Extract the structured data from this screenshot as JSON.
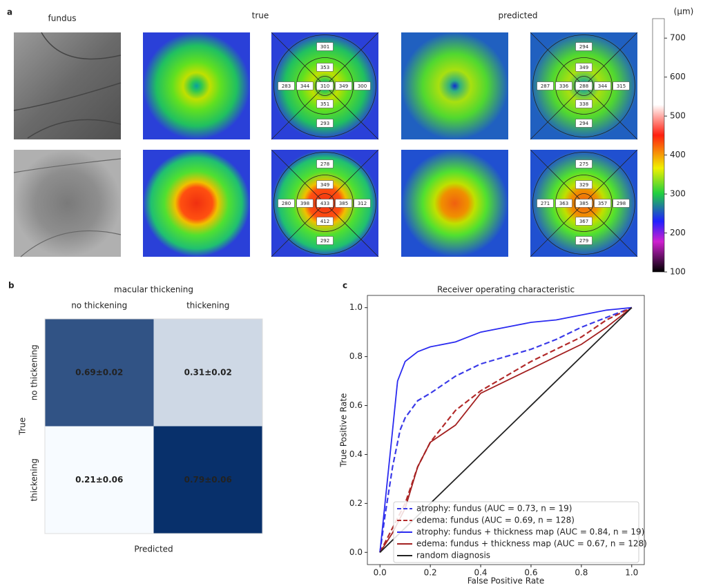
{
  "panel_a": {
    "label": "a",
    "column_titles": [
      "fundus",
      "true",
      "predicted"
    ],
    "grids": [
      {
        "values": [
          301,
          353,
          283,
          344,
          310,
          349,
          300,
          351,
          293
        ]
      },
      {
        "values": [
          294,
          349,
          287,
          336,
          288,
          344,
          315,
          338,
          294
        ]
      },
      {
        "values": [
          278,
          349,
          280,
          398,
          433,
          385,
          312,
          412,
          292
        ]
      },
      {
        "values": [
          275,
          329,
          271,
          363,
          385,
          357,
          298,
          367,
          279
        ]
      }
    ],
    "colorbar": {
      "unit": "(μm)",
      "lim": [
        100,
        750
      ],
      "ticks": [
        100,
        200,
        300,
        400,
        500,
        600,
        700
      ]
    }
  },
  "chart_data": [
    {
      "type": "heatmap",
      "panel_label": "b",
      "title": "macular thickening",
      "categories": [
        "no thickening",
        "thickening"
      ],
      "row_categories": [
        "no thickening",
        "thickening"
      ],
      "xlabel": "Predicted",
      "ylabel": "True",
      "values": [
        [
          0.69,
          0.31
        ],
        [
          0.21,
          0.79
        ]
      ],
      "value_labels": [
        [
          "0.69±0.02",
          "0.31±0.02"
        ],
        [
          "0.21±0.06",
          "0.79±0.06"
        ]
      ],
      "colormap": [
        "#f7fbff",
        "#08306b"
      ]
    },
    {
      "type": "line",
      "panel_label": "c",
      "title": "Receiver operating characteristic",
      "xlabel": "False Positive Rate",
      "ylabel": "True Positive Rate",
      "xlim": [
        -0.05,
        1.05
      ],
      "ylim": [
        -0.05,
        1.05
      ],
      "xticks": [
        {
          "value": 0,
          "label": "0.0"
        },
        {
          "value": 0.2,
          "label": "0.2"
        },
        {
          "value": 0.4,
          "label": "0.4"
        },
        {
          "value": 0.6,
          "label": "0.6"
        },
        {
          "value": 0.8,
          "label": "0.8"
        },
        {
          "value": 1,
          "label": "1.0"
        }
      ],
      "yticks": [
        {
          "value": 0,
          "label": "0.0"
        },
        {
          "value": 0.2,
          "label": "0.2"
        },
        {
          "value": 0.4,
          "label": "0.4"
        },
        {
          "value": 0.6,
          "label": "0.6"
        },
        {
          "value": 0.8,
          "label": "0.8"
        },
        {
          "value": 1,
          "label": "1.0"
        }
      ],
      "legend": "lower right",
      "series": [
        {
          "name": "atrophy: fundus (AUC = 0.73, n = 19)",
          "color": "#3a3ae8",
          "dash": "dashed",
          "x": [
            0,
            0.02,
            0.05,
            0.08,
            0.1,
            0.15,
            0.2,
            0.3,
            0.4,
            0.5,
            0.6,
            0.7,
            0.8,
            0.9,
            1.0
          ],
          "values": [
            0,
            0.15,
            0.35,
            0.5,
            0.55,
            0.62,
            0.65,
            0.72,
            0.77,
            0.8,
            0.83,
            0.87,
            0.92,
            0.96,
            1.0
          ]
        },
        {
          "name": "edema: fundus (AUC = 0.69, n = 128)",
          "color": "#b22a2a",
          "dash": "dashed",
          "x": [
            0,
            0.05,
            0.1,
            0.15,
            0.2,
            0.3,
            0.4,
            0.5,
            0.6,
            0.7,
            0.8,
            0.9,
            1.0
          ],
          "values": [
            0,
            0.1,
            0.2,
            0.35,
            0.45,
            0.58,
            0.66,
            0.72,
            0.78,
            0.83,
            0.88,
            0.95,
            1.0
          ]
        },
        {
          "name": "atrophy: fundus + thickness map (AUC = 0.84, n = 19)",
          "color": "#2a2af0",
          "dash": "solid",
          "x": [
            0,
            0.02,
            0.05,
            0.07,
            0.1,
            0.15,
            0.2,
            0.3,
            0.4,
            0.5,
            0.6,
            0.7,
            0.8,
            0.9,
            1.0
          ],
          "values": [
            0,
            0.2,
            0.5,
            0.7,
            0.78,
            0.82,
            0.84,
            0.86,
            0.9,
            0.92,
            0.94,
            0.95,
            0.97,
            0.99,
            1.0
          ]
        },
        {
          "name": "edema: fundus + thickness map (AUC = 0.67, n = 128)",
          "color": "#a32020",
          "dash": "solid",
          "x": [
            0,
            0.05,
            0.1,
            0.15,
            0.2,
            0.3,
            0.4,
            0.5,
            0.6,
            0.7,
            0.8,
            0.9,
            1.0
          ],
          "values": [
            0,
            0.08,
            0.18,
            0.35,
            0.45,
            0.52,
            0.65,
            0.7,
            0.75,
            0.8,
            0.85,
            0.92,
            1.0
          ]
        },
        {
          "name": "random diagnosis",
          "color": "#222222",
          "dash": "solid",
          "x": [
            0,
            1
          ],
          "values": [
            0,
            1
          ]
        }
      ]
    }
  ]
}
